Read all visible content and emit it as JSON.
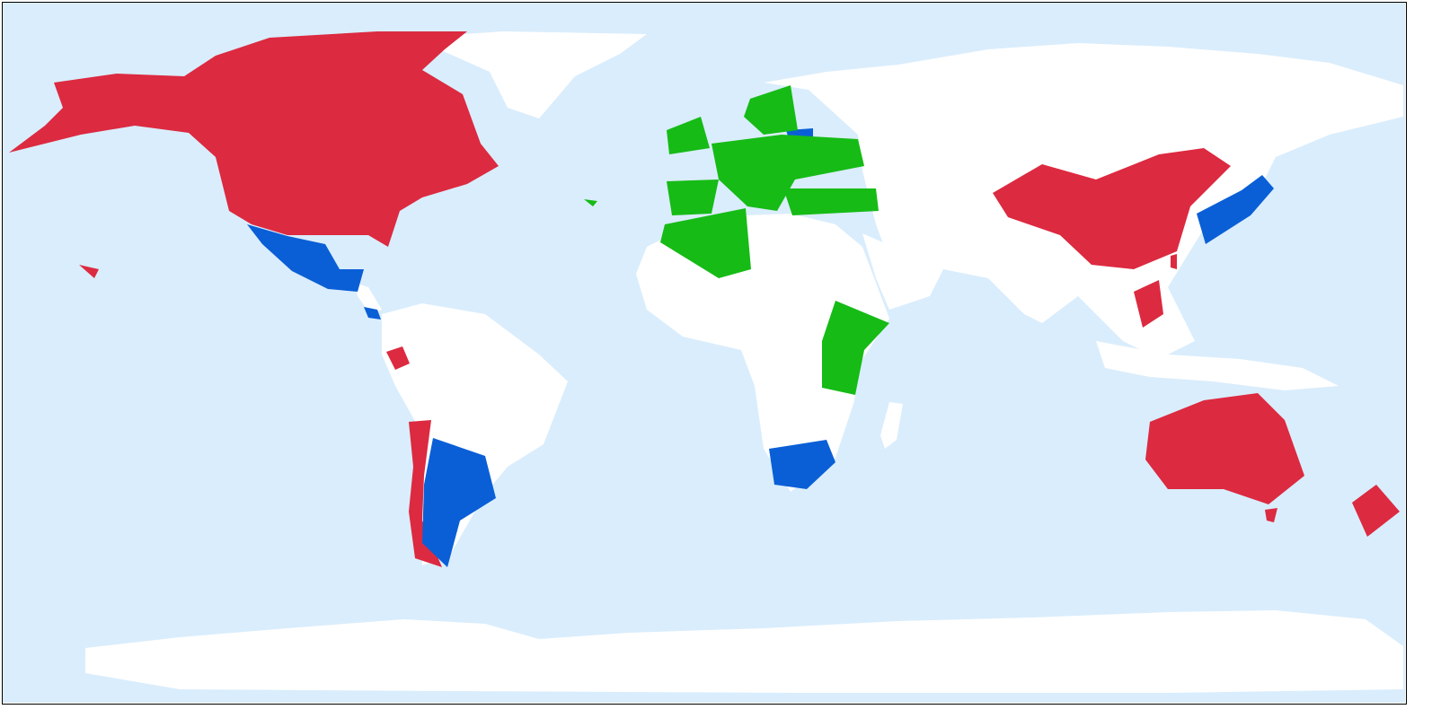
{
  "map": {
    "projection": "equirectangular",
    "colors": {
      "ocean": "#daedfc",
      "land": "#ffffff",
      "group_red": "#dc2a40",
      "group_blue": "#0a5fd6",
      "group_green": "#16bb16",
      "border": "#000000"
    }
  }
}
